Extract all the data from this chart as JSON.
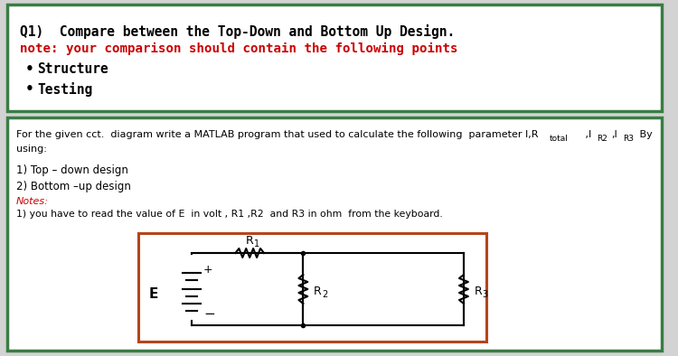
{
  "title_q1": "Q1)  Compare between the Top-Down and Bottom Up Design.",
  "note_text": "note: your comparison should contain the following points",
  "bullets": [
    "Structure",
    "Testing"
  ],
  "para_text": "For the given cct.  diagram write a MATLAB program that used to calculate the following  parameter I,R",
  "para_suffix": "total",
  "para_suffix2": " ,I",
  "para_r2": "R2",
  "para_comma": ",I",
  "para_r3": "R3",
  "para_by": " By",
  "para_line2": "using:",
  "item1": "1) Top – down design",
  "item2": "2) Bottom –up design",
  "notes_label": "Notes:",
  "note1": "1) you have to read the value of E  in volt , R1 ,R2  and R3 in ohm  from the keyboard.",
  "box1_border": "#3a7d44",
  "box2_border": "#3a7d44",
  "circuit_border": "#b5451b",
  "bg_color": "#ffffff",
  "title_color": "#000000",
  "note_color": "#cc0000",
  "notes_label_color": "#cc0000",
  "body_text_color": "#000000",
  "bullet_color": "#000000",
  "fig_bg": "#d3d3d3"
}
